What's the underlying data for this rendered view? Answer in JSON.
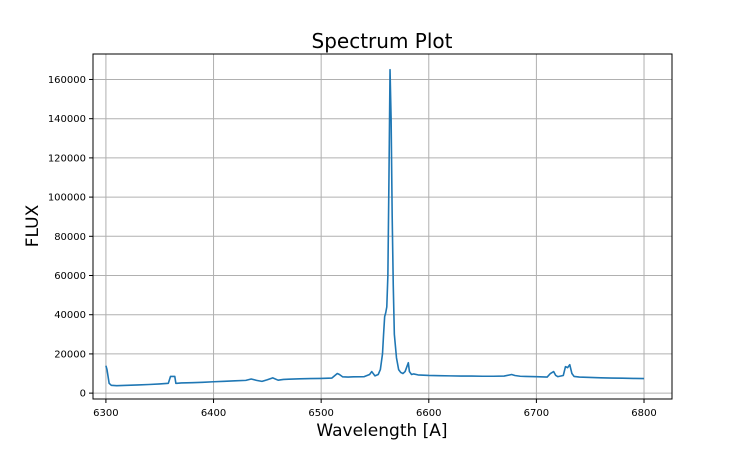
{
  "chart_data": {
    "type": "line",
    "title": "Spectrum Plot",
    "xlabel": "Wavelength [A]",
    "ylabel": "FLUX",
    "xlim": [
      6288,
      6826
    ],
    "ylim": [
      -3000,
      173000
    ],
    "xticks": [
      6300,
      6400,
      6500,
      6600,
      6700,
      6800
    ],
    "xtick_labels": [
      "6300",
      "6400",
      "6500",
      "6600",
      "6700",
      "6800"
    ],
    "yticks": [
      0,
      20000,
      40000,
      60000,
      80000,
      100000,
      120000,
      140000,
      160000
    ],
    "ytick_labels": [
      "0",
      "20000",
      "40000",
      "60000",
      "80000",
      "100000",
      "120000",
      "140000",
      "160000"
    ],
    "grid": true,
    "series": [
      {
        "color": "#1f77b4",
        "x": [
          6300,
          6301,
          6303,
          6305,
          6310,
          6320,
          6330,
          6340,
          6350,
          6358,
          6360,
          6361,
          6364,
          6365,
          6366,
          6370,
          6380,
          6390,
          6400,
          6410,
          6420,
          6430,
          6435,
          6440,
          6445,
          6450,
          6455,
          6460,
          6465,
          6470,
          6480,
          6490,
          6500,
          6510,
          6515,
          6517,
          6520,
          6525,
          6530,
          6540,
          6545,
          6547,
          6550,
          6553,
          6555,
          6557,
          6558,
          6559,
          6560,
          6561,
          6562,
          6563,
          6564,
          6565,
          6566,
          6567,
          6568,
          6570,
          6572,
          6574,
          6576,
          6578,
          6580,
          6581,
          6582,
          6584,
          6586,
          6590,
          6600,
          6610,
          6620,
          6630,
          6640,
          6650,
          6660,
          6670,
          6677,
          6680,
          6685,
          6690,
          6700,
          6710,
          6713,
          6716,
          6718,
          6720,
          6725,
          6727,
          6729,
          6731,
          6733,
          6735,
          6740,
          6750,
          6760,
          6770,
          6780,
          6790,
          6800
        ],
        "y": [
          14000,
          12000,
          5000,
          4000,
          3800,
          4000,
          4200,
          4400,
          4700,
          5000,
          8500,
          8500,
          8500,
          5000,
          5000,
          5200,
          5300,
          5500,
          5800,
          6000,
          6300,
          6500,
          7200,
          6500,
          6000,
          6800,
          7800,
          6600,
          7000,
          7100,
          7300,
          7400,
          7500,
          7700,
          10000,
          9500,
          8300,
          8200,
          8300,
          8400,
          9500,
          11000,
          8800,
          9500,
          12000,
          20000,
          30000,
          39000,
          41000,
          44000,
          60000,
          110000,
          165000,
          140000,
          90000,
          55000,
          30000,
          18000,
          12000,
          10500,
          10000,
          11000,
          14000,
          15500,
          11000,
          9500,
          9800,
          9300,
          9000,
          8900,
          8800,
          8700,
          8700,
          8600,
          8600,
          8700,
          9500,
          9000,
          8600,
          8500,
          8400,
          8200,
          10000,
          11000,
          9000,
          8400,
          9000,
          13500,
          13000,
          14500,
          10000,
          8500,
          8200,
          8000,
          7800,
          7700,
          7600,
          7500,
          7400
        ]
      }
    ]
  }
}
